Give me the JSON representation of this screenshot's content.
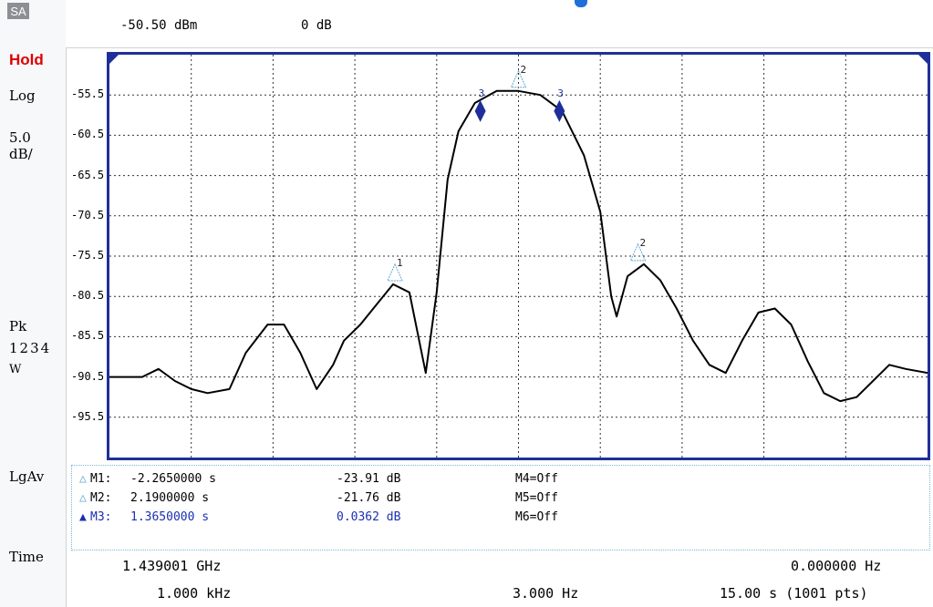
{
  "left_panel": {
    "badge": "SA",
    "hold": "Hold",
    "scale_type": "Log",
    "scale_value": "5.0",
    "scale_unit": "dB/",
    "detector": "Pk",
    "traces": "1234",
    "trace_mode": "W",
    "avg_type": "LgAv",
    "x_axis": "Time"
  },
  "header": {
    "ref_level": "-50.50 dBm",
    "attenuation": "0 dB"
  },
  "chart_data": {
    "type": "line",
    "y_ticks": [
      "-55.5",
      "-60.5",
      "-65.5",
      "-70.5",
      "-75.5",
      "-80.5",
      "-85.5",
      "-90.5",
      "-95.5"
    ],
    "ylim": [
      -100.5,
      -50.5
    ],
    "xlim": [
      -7.5,
      7.5
    ],
    "x_divisions": 10,
    "y_divisions": 10,
    "grid": true,
    "series": [
      {
        "x": [
          -7.5,
          -6.9,
          -6.6,
          -6.3,
          -6.0,
          -5.7,
          -5.3,
          -5.0,
          -4.6,
          -4.3,
          -4.0,
          -3.7,
          -3.4,
          -3.2,
          -2.9,
          -2.6,
          -2.3,
          -2.0,
          -1.7,
          -1.5,
          -1.4,
          -1.3,
          -1.1,
          -0.8,
          -0.4,
          0.0,
          0.4,
          0.8,
          1.2,
          1.5,
          1.7,
          1.8,
          2.0,
          2.3,
          2.6,
          2.9,
          3.2,
          3.5,
          3.8,
          4.1,
          4.4,
          4.7,
          5.0,
          5.3,
          5.6,
          5.9,
          6.2,
          6.5,
          6.8,
          7.1,
          7.5
        ],
        "y": [
          -90.5,
          -90.5,
          -89.5,
          -91.0,
          -92.0,
          -92.5,
          -92.0,
          -87.5,
          -84.0,
          -84.0,
          -87.5,
          -92.0,
          -89.0,
          -86.0,
          -84.0,
          -81.5,
          -79.0,
          -80.0,
          -90.0,
          -80.0,
          -73.0,
          -66.0,
          -60.0,
          -56.5,
          -55.0,
          -55.0,
          -55.5,
          -57.5,
          -63.0,
          -70.0,
          -80.5,
          -83.0,
          -78.0,
          -76.5,
          -78.5,
          -82.0,
          -86.0,
          -89.0,
          -90.0,
          -86.0,
          -82.5,
          -82.0,
          -84.0,
          -88.5,
          -92.5,
          -93.5,
          -93.0,
          -91.0,
          -89.0,
          -89.5,
          -90.0
        ],
        "color": "#000000"
      }
    ],
    "markers": [
      {
        "label": "1",
        "x": -2.265,
        "y": -79.0,
        "color": "#5fa8cf"
      },
      {
        "label": "2",
        "x": 2.19,
        "y": -76.5,
        "color": "#5fa8cf"
      },
      {
        "label": "2",
        "x": 0.0,
        "y": -55.0,
        "color": "#5fa8cf"
      },
      {
        "label": "3",
        "x": -0.7,
        "y": -57.5,
        "color": "#1f2f9a"
      },
      {
        "label": "3",
        "x": 0.75,
        "y": -57.5,
        "color": "#1f2f9a"
      }
    ]
  },
  "marker_table": {
    "rows": [
      {
        "name": "M1:",
        "time": "-2.2650000  s",
        "delta": "-23.91 dB",
        "other": "M4=Off",
        "active": false
      },
      {
        "name": "M2:",
        "time": "2.1900000  s",
        "delta": "-21.76 dB",
        "other": "M5=Off",
        "active": false
      },
      {
        "name": "M3:",
        "time": "1.3650000  s",
        "delta": "0.0362 dB",
        "other": "M6=Off",
        "active": true
      }
    ]
  },
  "footer": {
    "center_freq": "1.439001 GHz",
    "span": "0.000000  Hz",
    "rbw": "1.000 kHz",
    "vbw": "3.000  Hz",
    "sweep": "15.00  s (1001 pts)"
  }
}
